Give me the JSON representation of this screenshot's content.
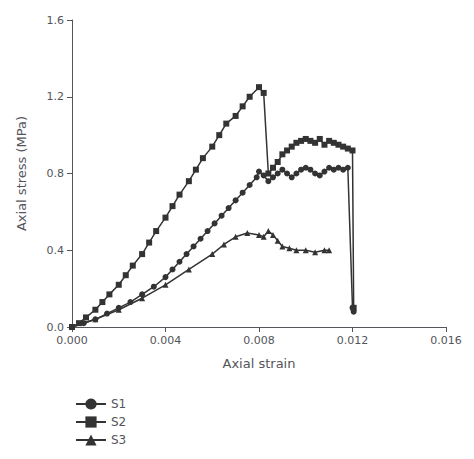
{
  "chart_data": {
    "type": "line",
    "xlabel": "Axial strain",
    "ylabel": "Axial stress (MPa)",
    "xlim": [
      0.0,
      0.016
    ],
    "ylim": [
      0.0,
      1.6
    ],
    "xticks": [
      {
        "value": 0.0,
        "label": "0.000"
      },
      {
        "value": 0.004,
        "label": "0.004"
      },
      {
        "value": 0.008,
        "label": "0.008"
      },
      {
        "value": 0.012,
        "label": "0.012"
      },
      {
        "value": 0.016,
        "label": "0.016"
      }
    ],
    "yticks": [
      {
        "value": 0.0,
        "label": "0.0"
      },
      0.4,
      0.8,
      1.2,
      1.6
    ],
    "grid": false,
    "legend": "bottom left",
    "series": [
      {
        "name": "S1",
        "color": "#333333",
        "marker": "circle",
        "x": [
          0.0,
          0.0005,
          0.001,
          0.0015,
          0.002,
          0.0025,
          0.003,
          0.0035,
          0.004,
          0.0043,
          0.0046,
          0.0049,
          0.0052,
          0.0055,
          0.0058,
          0.0061,
          0.0064,
          0.0067,
          0.007,
          0.0073,
          0.0076,
          0.0079,
          0.008,
          0.0082,
          0.0084,
          0.0086,
          0.0088,
          0.009,
          0.0092,
          0.0094,
          0.0096,
          0.0098,
          0.01,
          0.0102,
          0.0104,
          0.0106,
          0.0108,
          0.011,
          0.0112,
          0.0114,
          0.0116,
          0.0118,
          0.012,
          0.01205
        ],
        "values": [
          0.0,
          0.02,
          0.04,
          0.07,
          0.1,
          0.13,
          0.17,
          0.21,
          0.26,
          0.3,
          0.34,
          0.38,
          0.42,
          0.46,
          0.5,
          0.54,
          0.58,
          0.62,
          0.66,
          0.7,
          0.74,
          0.78,
          0.81,
          0.79,
          0.76,
          0.78,
          0.8,
          0.82,
          0.8,
          0.78,
          0.8,
          0.82,
          0.83,
          0.82,
          0.8,
          0.79,
          0.81,
          0.83,
          0.82,
          0.83,
          0.82,
          0.83,
          0.1,
          0.08
        ]
      },
      {
        "name": "S2",
        "color": "#333333",
        "marker": "square",
        "x": [
          0.0,
          0.0003,
          0.0006,
          0.001,
          0.0013,
          0.0016,
          0.002,
          0.0023,
          0.0026,
          0.003,
          0.0033,
          0.0036,
          0.004,
          0.0043,
          0.0046,
          0.005,
          0.0053,
          0.0056,
          0.006,
          0.0063,
          0.0066,
          0.007,
          0.0073,
          0.0076,
          0.008,
          0.0082,
          0.0084,
          0.0086,
          0.0088,
          0.009,
          0.0092,
          0.0094,
          0.0096,
          0.0098,
          0.01,
          0.0102,
          0.0104,
          0.0106,
          0.0108,
          0.011,
          0.0112,
          0.0114,
          0.0116,
          0.0118,
          0.012,
          0.01205
        ],
        "values": [
          0.0,
          0.02,
          0.05,
          0.09,
          0.13,
          0.17,
          0.22,
          0.27,
          0.32,
          0.38,
          0.44,
          0.5,
          0.57,
          0.63,
          0.69,
          0.76,
          0.82,
          0.88,
          0.94,
          1.0,
          1.06,
          1.1,
          1.15,
          1.2,
          1.25,
          1.22,
          0.8,
          0.83,
          0.86,
          0.9,
          0.92,
          0.94,
          0.96,
          0.97,
          0.98,
          0.97,
          0.96,
          0.98,
          0.95,
          0.97,
          0.96,
          0.95,
          0.94,
          0.93,
          0.92,
          0.1
        ]
      },
      {
        "name": "S3",
        "color": "#333333",
        "marker": "triangle",
        "x": [
          0.0,
          0.001,
          0.002,
          0.003,
          0.004,
          0.005,
          0.006,
          0.0065,
          0.007,
          0.0075,
          0.008,
          0.0082,
          0.0084,
          0.0086,
          0.0088,
          0.009,
          0.0093,
          0.0096,
          0.01,
          0.0104,
          0.0108,
          0.011
        ],
        "values": [
          0.0,
          0.04,
          0.09,
          0.15,
          0.22,
          0.3,
          0.38,
          0.43,
          0.47,
          0.49,
          0.48,
          0.47,
          0.5,
          0.48,
          0.45,
          0.42,
          0.41,
          0.4,
          0.4,
          0.39,
          0.4,
          0.4
        ]
      }
    ]
  }
}
